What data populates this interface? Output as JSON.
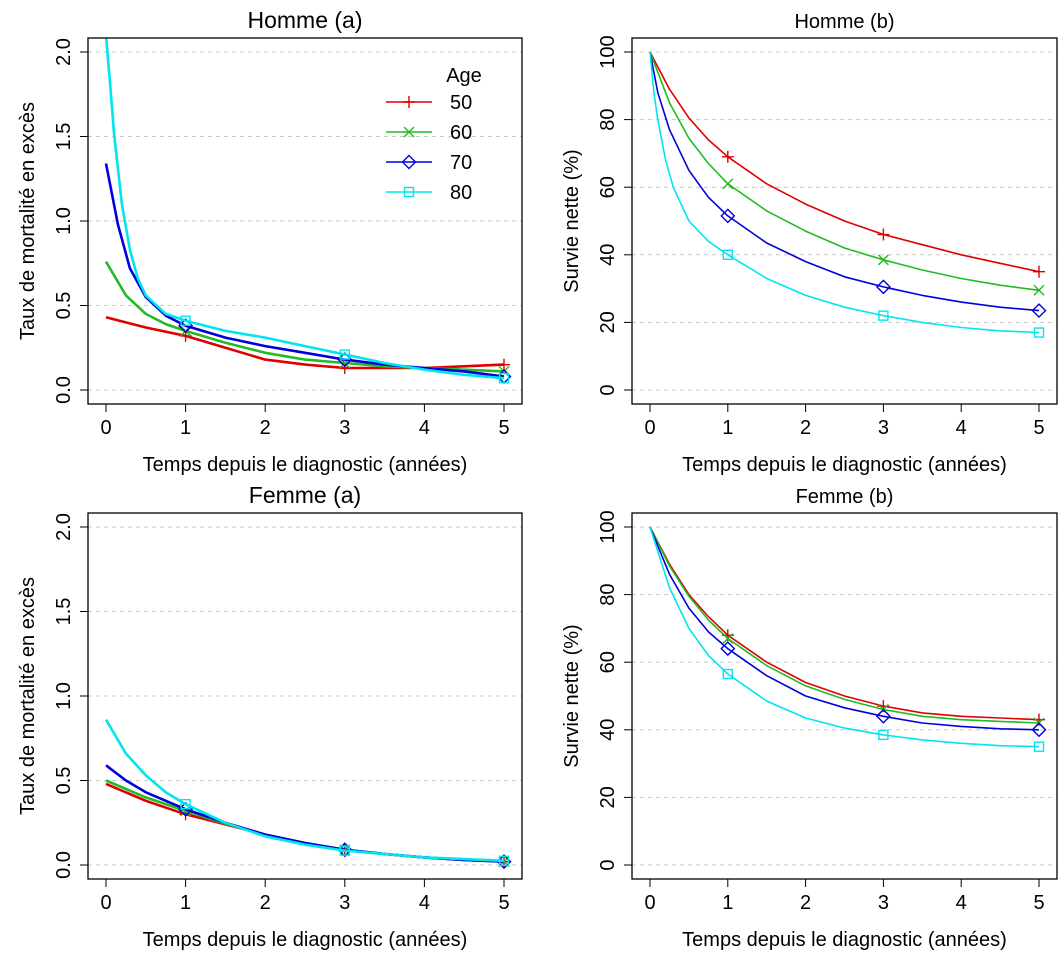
{
  "chart_data": [
    {
      "type": "line",
      "title": "Homme (a)",
      "xlabel": "Temps depuis le diagnostic (années)",
      "ylabel": "Taux de mortalité en excès",
      "xlim": [
        0,
        5
      ],
      "ylim": [
        0,
        2
      ],
      "xticks": [
        "0",
        "1",
        "2",
        "3",
        "4",
        "5"
      ],
      "yticks": [
        "0.0",
        "0.5",
        "1.0",
        "1.5",
        "2.0"
      ],
      "grid": "horizontal dashed",
      "legend": {
        "title": "Age",
        "position": "top-right"
      },
      "series": [
        {
          "name": "50",
          "color": "#DF0000",
          "marker": "plus",
          "x": [
            0,
            0.5,
            1,
            1.5,
            2,
            2.5,
            3,
            3.5,
            4,
            4.5,
            5
          ],
          "y": [
            0.43,
            0.37,
            0.32,
            0.25,
            0.18,
            0.15,
            0.13,
            0.13,
            0.13,
            0.14,
            0.15
          ],
          "markers_x": [
            1,
            3,
            5
          ]
        },
        {
          "name": "60",
          "color": "#22BB22",
          "marker": "cross",
          "x": [
            0,
            0.25,
            0.5,
            0.75,
            1,
            1.5,
            2,
            2.5,
            3,
            3.5,
            4,
            4.5,
            5
          ],
          "y": [
            0.76,
            0.56,
            0.45,
            0.39,
            0.35,
            0.28,
            0.22,
            0.18,
            0.16,
            0.14,
            0.13,
            0.12,
            0.11
          ],
          "markers_x": [
            1,
            3,
            5
          ]
        },
        {
          "name": "70",
          "color": "#0000DD",
          "marker": "diamond",
          "x": [
            0,
            0.15,
            0.3,
            0.5,
            0.75,
            1,
            1.5,
            2,
            2.5,
            3,
            3.5,
            4,
            4.5,
            5
          ],
          "y": [
            1.34,
            0.98,
            0.72,
            0.55,
            0.44,
            0.38,
            0.31,
            0.26,
            0.22,
            0.18,
            0.15,
            0.13,
            0.11,
            0.08
          ],
          "markers_x": [
            1,
            3,
            5
          ]
        },
        {
          "name": "80",
          "color": "#00E5EE",
          "marker": "square",
          "x": [
            0,
            0.05,
            0.1,
            0.2,
            0.3,
            0.4,
            0.5,
            0.75,
            1,
            1.5,
            2,
            2.5,
            3,
            3.5,
            4,
            4.5,
            5
          ],
          "y": [
            2.1,
            1.82,
            1.52,
            1.1,
            0.83,
            0.66,
            0.56,
            0.45,
            0.41,
            0.35,
            0.31,
            0.26,
            0.21,
            0.16,
            0.12,
            0.09,
            0.07
          ],
          "markers_x": [
            1,
            3,
            5
          ]
        }
      ]
    },
    {
      "type": "line",
      "title": "Homme  (b)",
      "xlabel": "Temps depuis le diagnostic (années)",
      "ylabel": "Survie nette (%)",
      "xlim": [
        0,
        5
      ],
      "ylim": [
        0,
        100
      ],
      "xticks": [
        "0",
        "1",
        "2",
        "3",
        "4",
        "5"
      ],
      "yticks": [
        "0",
        "20",
        "40",
        "60",
        "80",
        "100"
      ],
      "grid": "horizontal dashed",
      "series": [
        {
          "name": "50",
          "color": "#DF0000",
          "marker": "plus",
          "x": [
            0,
            0.25,
            0.5,
            0.75,
            1,
            1.5,
            2,
            2.5,
            3,
            3.5,
            4,
            4.5,
            5
          ],
          "y": [
            100,
            89,
            80.5,
            74,
            69,
            61,
            55,
            50,
            46,
            43,
            40,
            37.5,
            35
          ],
          "markers_x": [
            1,
            3,
            5
          ]
        },
        {
          "name": "60",
          "color": "#22BB22",
          "marker": "cross",
          "x": [
            0,
            0.25,
            0.5,
            0.75,
            1,
            1.5,
            2,
            2.5,
            3,
            3.5,
            4,
            4.5,
            5
          ],
          "y": [
            100,
            85,
            74.5,
            67,
            61,
            53,
            47,
            42,
            38.5,
            35.5,
            33,
            31,
            29.5
          ],
          "markers_x": [
            1,
            3,
            5
          ]
        },
        {
          "name": "70",
          "color": "#0000DD",
          "marker": "diamond",
          "x": [
            0,
            0.1,
            0.25,
            0.5,
            0.75,
            1,
            1.5,
            2,
            2.5,
            3,
            3.5,
            4,
            4.5,
            5
          ],
          "y": [
            100,
            88,
            77,
            65,
            57,
            51.5,
            43.5,
            38,
            33.5,
            30.5,
            28,
            26,
            24.5,
            23.5
          ],
          "markers_x": [
            1,
            3,
            5
          ]
        },
        {
          "name": "80",
          "color": "#00E5EE",
          "marker": "square",
          "x": [
            0,
            0.05,
            0.1,
            0.2,
            0.3,
            0.5,
            0.75,
            1,
            1.5,
            2,
            2.5,
            3,
            3.5,
            4,
            4.5,
            5
          ],
          "y": [
            100,
            88,
            80,
            68,
            60,
            50,
            44,
            40,
            33,
            28,
            24.5,
            22,
            20,
            18.5,
            17.5,
            17
          ],
          "markers_x": [
            1,
            3,
            5
          ]
        }
      ]
    },
    {
      "type": "line",
      "title": "Femme (a)",
      "xlabel": "Temps depuis le diagnostic (années)",
      "ylabel": "Taux de mortalité en excès",
      "xlim": [
        0,
        5
      ],
      "ylim": [
        0,
        2
      ],
      "xticks": [
        "0",
        "1",
        "2",
        "3",
        "4",
        "5"
      ],
      "yticks": [
        "0.0",
        "0.5",
        "1.0",
        "1.5",
        "2.0"
      ],
      "grid": "horizontal dashed",
      "series": [
        {
          "name": "50",
          "color": "#DF0000",
          "marker": "plus",
          "x": [
            0,
            0.5,
            1,
            1.5,
            2,
            2.5,
            3,
            3.5,
            4,
            4.5,
            5
          ],
          "y": [
            0.48,
            0.38,
            0.3,
            0.24,
            0.18,
            0.13,
            0.09,
            0.065,
            0.045,
            0.03,
            0.02
          ],
          "markers_x": [
            1,
            3,
            5
          ]
        },
        {
          "name": "60",
          "color": "#22BB22",
          "marker": "cross",
          "x": [
            0,
            0.5,
            1,
            1.5,
            2,
            2.5,
            3,
            3.5,
            4,
            4.5,
            5
          ],
          "y": [
            0.5,
            0.4,
            0.32,
            0.245,
            0.18,
            0.13,
            0.09,
            0.065,
            0.045,
            0.03,
            0.02
          ],
          "markers_x": [
            1,
            3,
            5
          ]
        },
        {
          "name": "70",
          "color": "#0000DD",
          "marker": "diamond",
          "x": [
            0,
            0.25,
            0.5,
            0.75,
            1,
            1.5,
            2,
            2.5,
            3,
            3.5,
            4,
            4.5,
            5
          ],
          "y": [
            0.59,
            0.5,
            0.43,
            0.38,
            0.33,
            0.25,
            0.18,
            0.13,
            0.09,
            0.065,
            0.045,
            0.03,
            0.02
          ],
          "markers_x": [
            1,
            3,
            5
          ]
        },
        {
          "name": "80",
          "color": "#00E5EE",
          "marker": "square",
          "x": [
            0,
            0.25,
            0.5,
            0.75,
            1,
            1.5,
            2,
            2.5,
            3,
            3.5,
            4,
            4.5,
            5
          ],
          "y": [
            0.86,
            0.66,
            0.53,
            0.43,
            0.36,
            0.25,
            0.17,
            0.12,
            0.085,
            0.065,
            0.045,
            0.035,
            0.025
          ],
          "markers_x": [
            1,
            3,
            5
          ]
        }
      ]
    },
    {
      "type": "line",
      "title": "Femme  (b)",
      "xlabel": "Temps depuis le diagnostic (années)",
      "ylabel": "Survie nette (%)",
      "xlim": [
        0,
        5
      ],
      "ylim": [
        0,
        100
      ],
      "xticks": [
        "0",
        "1",
        "2",
        "3",
        "4",
        "5"
      ],
      "yticks": [
        "0",
        "20",
        "40",
        "60",
        "80",
        "100"
      ],
      "grid": "horizontal dashed",
      "series": [
        {
          "name": "50",
          "color": "#DF0000",
          "marker": "plus",
          "x": [
            0,
            0.25,
            0.5,
            0.75,
            1,
            1.5,
            2,
            2.5,
            3,
            3.5,
            4,
            4.5,
            5
          ],
          "y": [
            100,
            89,
            80,
            73.5,
            68,
            60,
            54,
            50,
            47,
            45,
            44,
            43.5,
            43
          ],
          "markers_x": [
            1,
            3,
            5
          ]
        },
        {
          "name": "60",
          "color": "#22BB22",
          "marker": "cross",
          "x": [
            0,
            0.25,
            0.5,
            0.75,
            1,
            1.5,
            2,
            2.5,
            3,
            3.5,
            4,
            4.5,
            5
          ],
          "y": [
            100,
            88.5,
            79.5,
            72.5,
            67,
            59,
            53,
            49,
            46,
            44,
            43,
            42.5,
            42
          ],
          "markers_x": [
            1,
            3,
            5
          ]
        },
        {
          "name": "70",
          "color": "#0000DD",
          "marker": "diamond",
          "x": [
            0,
            0.25,
            0.5,
            0.75,
            1,
            1.5,
            2,
            2.5,
            3,
            3.5,
            4,
            4.5,
            5
          ],
          "y": [
            100,
            86,
            76,
            69,
            64,
            56,
            50,
            46.5,
            44,
            42,
            41,
            40.3,
            40
          ],
          "markers_x": [
            1,
            3,
            5
          ]
        },
        {
          "name": "80",
          "color": "#00E5EE",
          "marker": "square",
          "x": [
            0,
            0.25,
            0.5,
            0.75,
            1,
            1.5,
            2,
            2.5,
            3,
            3.5,
            4,
            4.5,
            5
          ],
          "y": [
            100,
            82,
            70,
            62,
            56.5,
            48.5,
            43.5,
            40.5,
            38.5,
            37,
            36,
            35.3,
            35
          ],
          "markers_x": [
            1,
            3,
            5
          ]
        }
      ]
    }
  ]
}
